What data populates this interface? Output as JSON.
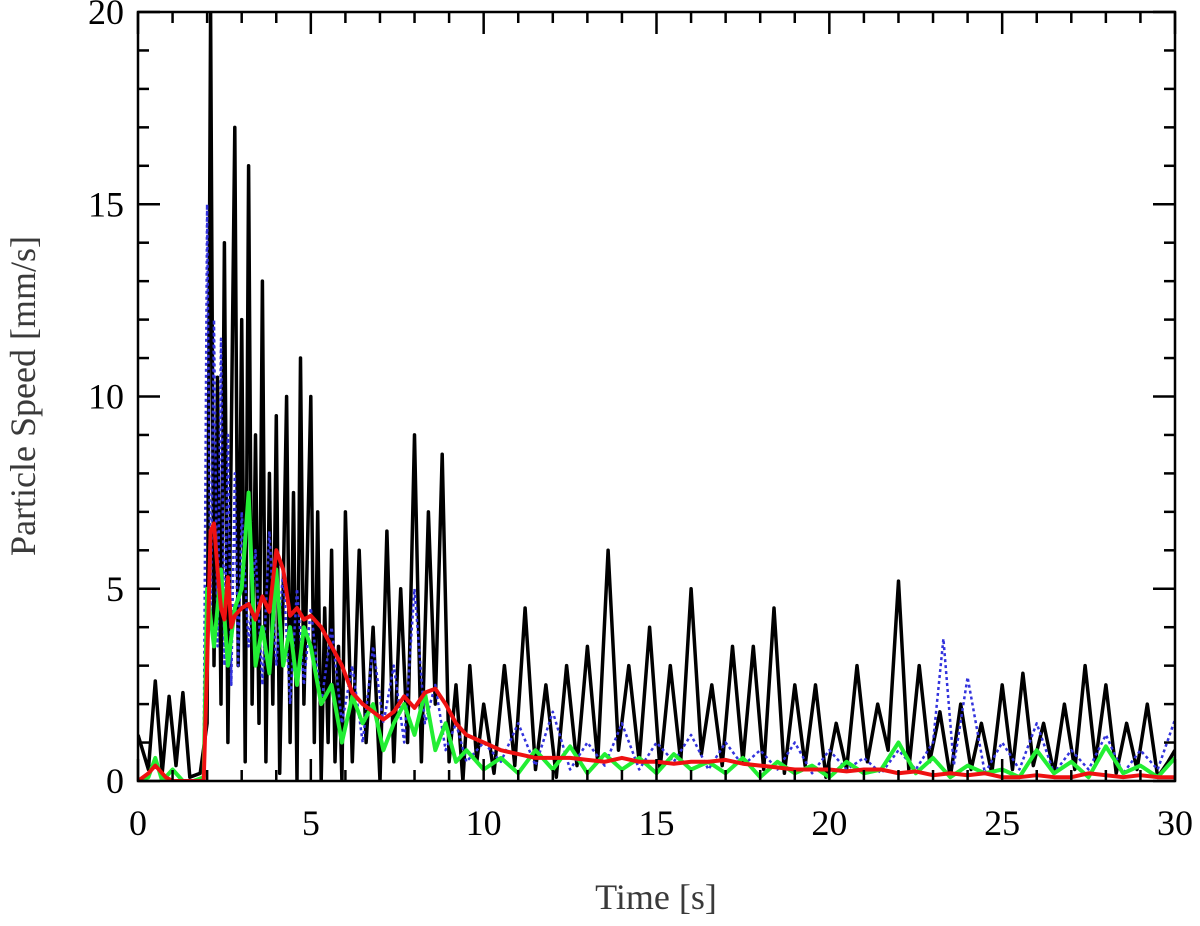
{
  "chart_data": {
    "type": "line",
    "xlabel": "Time [s]",
    "ylabel": "Particle Speed [mm/s]",
    "xlim": [
      0,
      30
    ],
    "ylim": [
      0,
      20
    ],
    "x_ticks": [
      "0",
      "5",
      "10",
      "15",
      "20",
      "25",
      "30"
    ],
    "y_ticks": [
      "0",
      "5",
      "10",
      "15",
      "20"
    ],
    "grid": false,
    "legend": "none",
    "series": [
      {
        "color": "#000000",
        "style": "solid",
        "x": [
          0,
          0.3,
          0.5,
          0.7,
          0.9,
          1.1,
          1.3,
          1.5,
          1.8,
          2.0,
          2.1,
          2.2,
          2.3,
          2.4,
          2.5,
          2.6,
          2.7,
          2.8,
          2.9,
          3.0,
          3.1,
          3.2,
          3.3,
          3.4,
          3.5,
          3.6,
          3.7,
          3.8,
          3.9,
          4.0,
          4.1,
          4.2,
          4.3,
          4.4,
          4.5,
          4.6,
          4.7,
          4.8,
          4.9,
          5.0,
          5.1,
          5.2,
          5.3,
          5.4,
          5.5,
          5.6,
          5.7,
          5.8,
          5.9,
          6.0,
          6.2,
          6.4,
          6.6,
          6.8,
          7.0,
          7.2,
          7.4,
          7.6,
          7.8,
          8.0,
          8.2,
          8.4,
          8.6,
          8.8,
          9.0,
          9.2,
          9.4,
          9.6,
          9.8,
          10.0,
          10.3,
          10.6,
          10.9,
          11.2,
          11.5,
          11.8,
          12.1,
          12.4,
          12.7,
          13.0,
          13.3,
          13.6,
          13.9,
          14.2,
          14.5,
          14.8,
          15.1,
          15.4,
          15.7,
          16.0,
          16.3,
          16.6,
          16.9,
          17.2,
          17.5,
          17.8,
          18.1,
          18.4,
          18.7,
          19.0,
          19.3,
          19.6,
          19.9,
          20.2,
          20.5,
          20.8,
          21.1,
          21.4,
          21.7,
          22.0,
          22.3,
          22.6,
          22.9,
          23.2,
          23.5,
          23.8,
          24.1,
          24.4,
          24.7,
          25.0,
          25.3,
          25.6,
          25.9,
          26.2,
          26.5,
          26.8,
          27.1,
          27.4,
          27.7,
          28.0,
          28.3,
          28.6,
          28.9,
          29.2,
          29.5,
          29.8,
          30.0
        ],
        "values": [
          1.2,
          0.3,
          2.6,
          0.2,
          2.2,
          0.4,
          2.3,
          0.1,
          0.2,
          1.5,
          20.0,
          3.0,
          10.5,
          2.0,
          14.0,
          1.0,
          9.0,
          17.0,
          3.0,
          12.0,
          0.5,
          16.0,
          2.0,
          9.0,
          1.5,
          13.0,
          0.5,
          8.0,
          2.0,
          9.5,
          0.2,
          5.0,
          10.0,
          1.0,
          7.5,
          0.0,
          11.0,
          2.0,
          6.0,
          10.0,
          1.0,
          7.0,
          0.0,
          4.5,
          1.0,
          6.0,
          0.5,
          3.5,
          0.0,
          7.0,
          0.5,
          6.0,
          1.0,
          4.0,
          0.0,
          6.5,
          0.5,
          5.0,
          1.0,
          9.0,
          0.5,
          7.0,
          2.0,
          8.5,
          0.5,
          2.5,
          0.0,
          3.0,
          0.5,
          2.0,
          0.2,
          3.0,
          0.4,
          4.5,
          0.3,
          2.5,
          0.1,
          3.0,
          0.4,
          3.5,
          0.5,
          6.0,
          0.8,
          3.0,
          0.5,
          4.0,
          0.3,
          3.0,
          0.5,
          5.0,
          0.7,
          2.5,
          0.4,
          3.5,
          0.5,
          3.5,
          0.3,
          4.5,
          0.2,
          2.5,
          0.4,
          2.5,
          0.1,
          1.5,
          0.3,
          3.0,
          0.5,
          2.0,
          0.8,
          5.2,
          0.3,
          3.0,
          0.5,
          1.8,
          0.1,
          2.0,
          0.3,
          1.5,
          0.2,
          2.5,
          0.3,
          2.8,
          0.4,
          1.5,
          0.2,
          2.0,
          0.3,
          3.0,
          0.5,
          2.5,
          0.2,
          1.5,
          0.3,
          2.0,
          0.1,
          0.5,
          0.8
        ]
      },
      {
        "color": "#3333dd",
        "style": "dotted",
        "x": [
          1.9,
          2.0,
          2.1,
          2.2,
          2.3,
          2.4,
          2.5,
          2.6,
          2.7,
          2.8,
          2.9,
          3.0,
          3.2,
          3.4,
          3.6,
          3.8,
          4.0,
          4.2,
          4.4,
          4.6,
          4.8,
          5.0,
          5.3,
          5.6,
          5.9,
          6.2,
          6.5,
          6.8,
          7.1,
          7.4,
          7.7,
          8.0,
          8.3,
          8.6,
          8.9,
          9.2,
          9.5,
          10.0,
          10.5,
          11.0,
          11.5,
          12.0,
          12.5,
          13.0,
          13.5,
          14.0,
          14.5,
          15.0,
          15.5,
          16.0,
          16.5,
          17.0,
          17.5,
          18.0,
          18.5,
          19.0,
          19.5,
          20.0,
          20.5,
          21.0,
          21.5,
          22.0,
          22.5,
          23.0,
          23.3,
          23.6,
          24.0,
          24.5,
          25.0,
          25.5,
          26.0,
          26.5,
          27.0,
          27.5,
          28.0,
          28.5,
          29.0,
          29.5,
          30.0
        ],
        "values": [
          0.5,
          15.0,
          4.0,
          12.0,
          3.5,
          11.5,
          3.0,
          9.0,
          2.5,
          8.0,
          3.0,
          7.0,
          3.5,
          6.0,
          2.5,
          6.5,
          3.0,
          5.5,
          2.0,
          5.0,
          2.5,
          4.5,
          2.0,
          4.0,
          1.5,
          3.0,
          1.0,
          3.5,
          1.5,
          3.0,
          1.0,
          5.0,
          1.5,
          2.5,
          0.8,
          1.5,
          0.5,
          1.0,
          0.5,
          1.5,
          0.4,
          1.8,
          0.3,
          1.0,
          0.4,
          1.5,
          0.3,
          1.0,
          0.5,
          1.2,
          0.3,
          1.0,
          0.4,
          0.8,
          0.3,
          1.0,
          0.2,
          0.8,
          0.3,
          0.6,
          0.2,
          0.8,
          0.3,
          1.0,
          3.7,
          0.4,
          2.7,
          0.2,
          1.0,
          0.3,
          1.5,
          0.2,
          0.8,
          0.3,
          1.2,
          0.2,
          0.8,
          0.3,
          1.6
        ]
      },
      {
        "color": "#22ee33",
        "style": "solid",
        "x": [
          0,
          0.3,
          0.5,
          0.7,
          1.0,
          1.3,
          1.6,
          1.9,
          2.0,
          2.2,
          2.4,
          2.6,
          2.8,
          3.0,
          3.2,
          3.4,
          3.6,
          3.8,
          4.0,
          4.2,
          4.4,
          4.6,
          4.8,
          5.0,
          5.3,
          5.6,
          5.9,
          6.2,
          6.5,
          6.8,
          7.1,
          7.4,
          7.7,
          8.0,
          8.3,
          8.6,
          8.9,
          9.2,
          9.5,
          10.0,
          10.5,
          11.0,
          11.5,
          12.0,
          12.5,
          13.0,
          13.5,
          14.0,
          14.5,
          15.0,
          15.5,
          16.0,
          16.5,
          17.0,
          17.5,
          18.0,
          18.5,
          19.0,
          19.5,
          20.0,
          20.5,
          21.0,
          21.5,
          22.0,
          22.5,
          23.0,
          23.5,
          24.0,
          24.5,
          25.0,
          25.5,
          26.0,
          26.5,
          27.0,
          27.5,
          28.0,
          28.5,
          29.0,
          29.5,
          30.0
        ],
        "values": [
          0.0,
          0.1,
          0.6,
          0.0,
          0.3,
          0.0,
          0.0,
          0.1,
          5.0,
          3.5,
          5.5,
          3.0,
          4.5,
          5.0,
          7.5,
          3.0,
          4.0,
          2.8,
          5.5,
          3.0,
          4.0,
          2.5,
          4.0,
          3.5,
          2.0,
          2.5,
          1.0,
          2.2,
          1.5,
          2.0,
          0.8,
          1.5,
          2.0,
          1.2,
          2.3,
          0.8,
          1.5,
          0.5,
          0.8,
          0.3,
          0.6,
          0.2,
          0.8,
          0.3,
          0.9,
          0.2,
          0.7,
          0.3,
          0.6,
          0.2,
          0.7,
          0.3,
          0.5,
          0.2,
          0.6,
          0.1,
          0.5,
          0.2,
          0.4,
          0.1,
          0.5,
          0.2,
          0.3,
          1.0,
          0.2,
          0.6,
          0.1,
          0.4,
          0.2,
          0.3,
          0.1,
          0.8,
          0.2,
          0.5,
          0.1,
          0.9,
          0.2,
          0.4,
          0.1,
          0.6
        ]
      },
      {
        "color": "#ee1111",
        "style": "solid",
        "x": [
          0,
          0.3,
          0.5,
          0.8,
          1.0,
          1.3,
          1.6,
          1.9,
          2.0,
          2.1,
          2.2,
          2.3,
          2.4,
          2.5,
          2.6,
          2.7,
          2.8,
          3.0,
          3.2,
          3.4,
          3.6,
          3.8,
          4.0,
          4.2,
          4.4,
          4.6,
          4.8,
          5.0,
          5.3,
          5.6,
          5.9,
          6.2,
          6.5,
          6.8,
          7.1,
          7.4,
          7.7,
          8.0,
          8.3,
          8.6,
          8.9,
          9.2,
          9.5,
          10.0,
          10.5,
          11.0,
          11.5,
          12.0,
          12.5,
          13.0,
          13.5,
          14.0,
          14.5,
          15.0,
          15.5,
          16.0,
          16.5,
          17.0,
          17.5,
          18.0,
          18.5,
          19.0,
          19.5,
          20.0,
          20.5,
          21.0,
          21.5,
          22.0,
          22.5,
          23.0,
          23.5,
          24.0,
          24.5,
          25.0,
          25.5,
          26.0,
          26.5,
          27.0,
          27.5,
          28.0,
          28.5,
          29.0,
          29.5,
          30.0
        ],
        "values": [
          0.0,
          0.2,
          0.4,
          0.1,
          0.0,
          0.0,
          0.0,
          0.0,
          3.0,
          6.5,
          6.7,
          5.5,
          4.5,
          4.2,
          5.3,
          4.0,
          4.3,
          4.5,
          4.6,
          4.2,
          4.8,
          4.4,
          6.0,
          5.5,
          4.3,
          4.5,
          4.2,
          4.3,
          4.0,
          3.5,
          3.0,
          2.3,
          2.0,
          1.8,
          1.6,
          1.8,
          2.2,
          1.9,
          2.3,
          2.4,
          2.0,
          1.5,
          1.2,
          1.0,
          0.8,
          0.7,
          0.6,
          0.6,
          0.6,
          0.55,
          0.5,
          0.6,
          0.5,
          0.5,
          0.45,
          0.5,
          0.5,
          0.55,
          0.45,
          0.4,
          0.35,
          0.3,
          0.3,
          0.3,
          0.25,
          0.3,
          0.3,
          0.2,
          0.25,
          0.15,
          0.2,
          0.15,
          0.2,
          0.1,
          0.1,
          0.15,
          0.1,
          0.1,
          0.2,
          0.15,
          0.1,
          0.15,
          0.1,
          0.1
        ]
      }
    ]
  }
}
